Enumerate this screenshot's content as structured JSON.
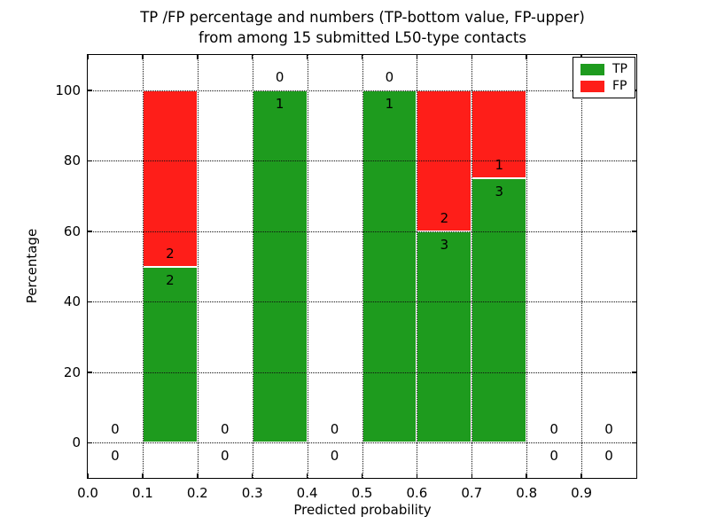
{
  "chart_data": {
    "type": "bar",
    "stacked": true,
    "title": {
      "line1": "TP /FP percentage and numbers (TP-bottom value, FP-upper)",
      "line2": "from among 15 submitted L50-type contacts"
    },
    "xlabel": "Predicted probability",
    "ylabel": "Percentage",
    "xlim": [
      0.0,
      1.0
    ],
    "ylim": [
      -10,
      110
    ],
    "grid": true,
    "total_submitted_contacts": 15,
    "colors": {
      "tp": "#1e9b1e",
      "fp": "#fe1e19"
    },
    "xticks": [
      {
        "v": 0.0,
        "label": "0.0"
      },
      {
        "v": 0.1,
        "label": "0.1"
      },
      {
        "v": 0.2,
        "label": "0.2"
      },
      {
        "v": 0.3,
        "label": "0.3"
      },
      {
        "v": 0.4,
        "label": "0.4"
      },
      {
        "v": 0.5,
        "label": "0.5"
      },
      {
        "v": 0.6,
        "label": "0.6"
      },
      {
        "v": 0.7,
        "label": "0.7"
      },
      {
        "v": 0.8,
        "label": "0.8"
      },
      {
        "v": 0.9,
        "label": "0.9"
      }
    ],
    "yticks": [
      {
        "v": 0,
        "label": "0"
      },
      {
        "v": 20,
        "label": "20"
      },
      {
        "v": 40,
        "label": "40"
      },
      {
        "v": 60,
        "label": "60"
      },
      {
        "v": 80,
        "label": "80"
      },
      {
        "v": 100,
        "label": "100"
      }
    ],
    "legend": {
      "position": "upper right",
      "entries": [
        {
          "label": "TP",
          "color": "#1e9b1e"
        },
        {
          "label": "FP",
          "color": "#fe1e19"
        }
      ]
    },
    "bins": [
      {
        "range": [
          0.0,
          0.1
        ],
        "tp_count": 0,
        "fp_count": 0,
        "tp_pct": 0,
        "fp_pct": 0
      },
      {
        "range": [
          0.1,
          0.2
        ],
        "tp_count": 2,
        "fp_count": 2,
        "tp_pct": 50,
        "fp_pct": 50
      },
      {
        "range": [
          0.2,
          0.3
        ],
        "tp_count": 0,
        "fp_count": 0,
        "tp_pct": 0,
        "fp_pct": 0
      },
      {
        "range": [
          0.3,
          0.4
        ],
        "tp_count": 1,
        "fp_count": 0,
        "tp_pct": 100,
        "fp_pct": 0
      },
      {
        "range": [
          0.4,
          0.5
        ],
        "tp_count": 0,
        "fp_count": 0,
        "tp_pct": 0,
        "fp_pct": 0
      },
      {
        "range": [
          0.5,
          0.6
        ],
        "tp_count": 1,
        "fp_count": 0,
        "tp_pct": 100,
        "fp_pct": 0
      },
      {
        "range": [
          0.6,
          0.7
        ],
        "tp_count": 3,
        "fp_count": 2,
        "tp_pct": 60,
        "fp_pct": 40
      },
      {
        "range": [
          0.7,
          0.8
        ],
        "tp_count": 3,
        "fp_count": 1,
        "tp_pct": 75,
        "fp_pct": 25
      },
      {
        "range": [
          0.8,
          0.9
        ],
        "tp_count": 0,
        "fp_count": 0,
        "tp_pct": 0,
        "fp_pct": 0
      },
      {
        "range": [
          0.9,
          1.0
        ],
        "tp_count": 0,
        "fp_count": 0,
        "tp_pct": 0,
        "fp_pct": 0
      }
    ]
  }
}
